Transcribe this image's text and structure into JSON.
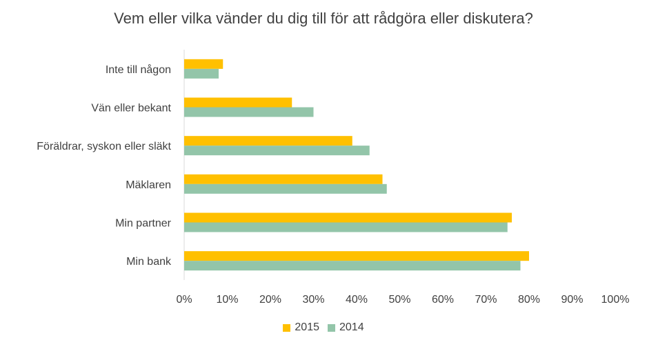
{
  "chart_data": {
    "type": "bar",
    "orientation": "horizontal",
    "title": "Vem eller vilka vänder du dig till för att rådgöra eller diskutera?",
    "xlabel": "",
    "ylabel": "",
    "categories": [
      "Inte till någon",
      "Vän eller bekant",
      "Föräldrar, syskon eller släkt",
      "Mäklaren",
      "Min partner",
      "Min bank"
    ],
    "series": [
      {
        "name": "2015",
        "color": "#FFC000",
        "values": [
          9,
          25,
          39,
          46,
          76,
          80
        ]
      },
      {
        "name": "2014",
        "color": "#93C5A9",
        "values": [
          8,
          30,
          43,
          47,
          75,
          78
        ]
      }
    ],
    "xlim": [
      0,
      100
    ],
    "x_ticks": [
      "0%",
      "10%",
      "20%",
      "30%",
      "40%",
      "50%",
      "60%",
      "70%",
      "80%",
      "90%",
      "100%"
    ],
    "grid": false,
    "legend_position": "bottom"
  }
}
